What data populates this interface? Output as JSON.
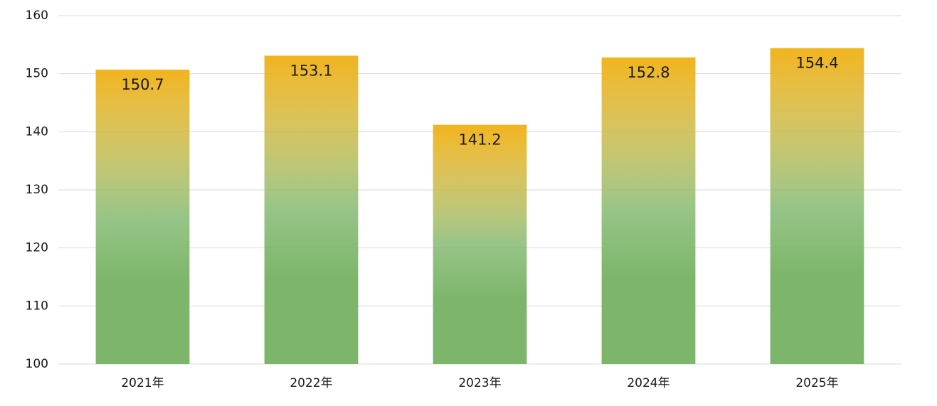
{
  "chart_data": {
    "type": "bar",
    "categories": [
      "2021年",
      "2022年",
      "2023年",
      "2024年",
      "2025年"
    ],
    "values": [
      150.7,
      153.1,
      141.2,
      152.8,
      154.4
    ],
    "gradient": [
      "#f0b41e",
      "#7db66a"
    ],
    "ylim": [
      100,
      160
    ],
    "yticks": [
      100,
      110,
      120,
      130,
      140,
      150,
      160
    ],
    "grid": true
  }
}
